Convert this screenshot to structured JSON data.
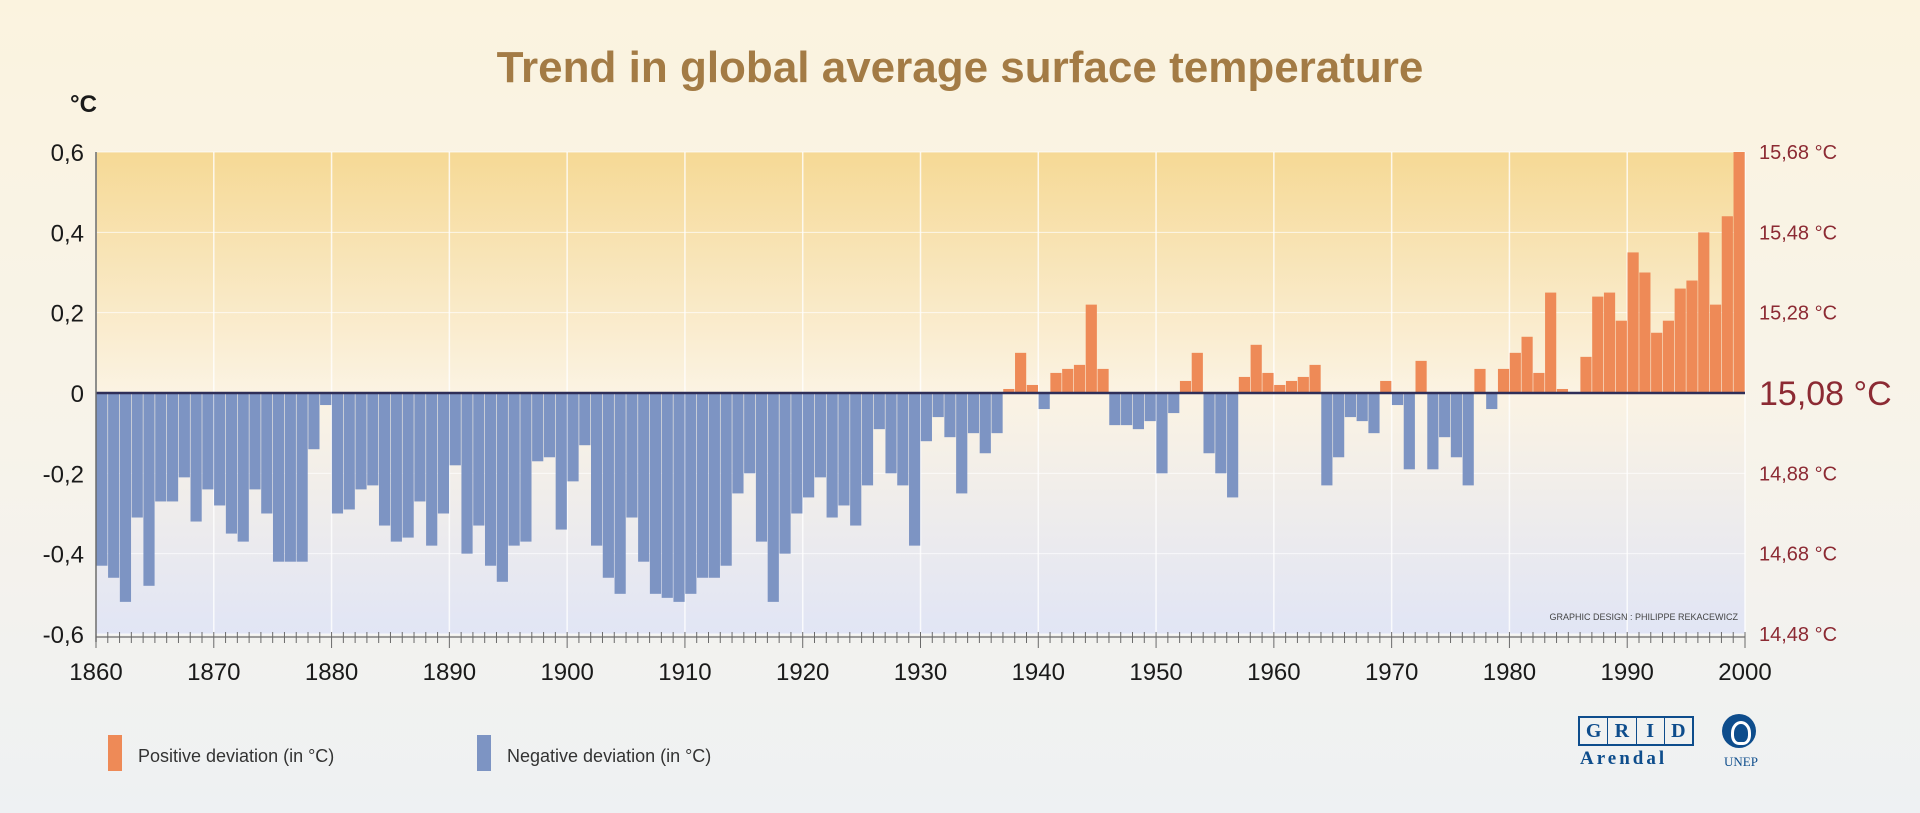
{
  "chart_data": {
    "type": "bar",
    "title": "Trend in global average surface temperature",
    "ylabel": "°C",
    "ylim": [
      -0.6,
      0.6
    ],
    "xlim": [
      1860,
      2000
    ],
    "yticks": [
      "0,6",
      "0,4",
      "0,2",
      "0",
      "-0,2",
      "-0,4",
      "-0,6"
    ],
    "right_ticks": [
      "15,68 °C",
      "15,48 °C",
      "15,28 °C",
      "15,08 °C",
      "14,88 °C",
      "14,68 °C",
      "14,48 °C"
    ],
    "xticks": [
      "1860",
      "1870",
      "1880",
      "1890",
      "1900",
      "1910",
      "1920",
      "1930",
      "1940",
      "1950",
      "1960",
      "1970",
      "1980",
      "1990",
      "2000"
    ],
    "years": [
      1860,
      1861,
      1862,
      1863,
      1864,
      1865,
      1866,
      1867,
      1868,
      1869,
      1870,
      1871,
      1872,
      1873,
      1874,
      1875,
      1876,
      1877,
      1878,
      1879,
      1880,
      1881,
      1882,
      1883,
      1884,
      1885,
      1886,
      1887,
      1888,
      1889,
      1890,
      1891,
      1892,
      1893,
      1894,
      1895,
      1896,
      1897,
      1898,
      1899,
      1900,
      1901,
      1902,
      1903,
      1904,
      1905,
      1906,
      1907,
      1908,
      1909,
      1910,
      1911,
      1912,
      1913,
      1914,
      1915,
      1916,
      1917,
      1918,
      1919,
      1920,
      1921,
      1922,
      1923,
      1924,
      1925,
      1926,
      1927,
      1928,
      1929,
      1930,
      1931,
      1932,
      1933,
      1934,
      1935,
      1936,
      1937,
      1938,
      1939,
      1940,
      1941,
      1942,
      1943,
      1944,
      1945,
      1946,
      1947,
      1948,
      1949,
      1950,
      1951,
      1952,
      1953,
      1954,
      1955,
      1956,
      1957,
      1958,
      1959,
      1960,
      1961,
      1962,
      1963,
      1964,
      1965,
      1966,
      1967,
      1968,
      1969,
      1970,
      1971,
      1972,
      1973,
      1974,
      1975,
      1976,
      1977,
      1978,
      1979,
      1980,
      1981,
      1982,
      1983,
      1984,
      1985,
      1986,
      1987,
      1988,
      1989,
      1990,
      1991,
      1992,
      1993,
      1994,
      1995,
      1996,
      1997,
      1998,
      1999
    ],
    "values": [
      -0.43,
      -0.46,
      -0.52,
      -0.31,
      -0.48,
      -0.27,
      -0.27,
      -0.21,
      -0.32,
      -0.24,
      -0.28,
      -0.35,
      -0.37,
      -0.24,
      -0.3,
      -0.42,
      -0.42,
      -0.42,
      -0.14,
      -0.03,
      -0.3,
      -0.29,
      -0.24,
      -0.23,
      -0.33,
      -0.37,
      -0.36,
      -0.27,
      -0.38,
      -0.3,
      -0.18,
      -0.4,
      -0.33,
      -0.43,
      -0.47,
      -0.38,
      -0.37,
      -0.17,
      -0.16,
      -0.34,
      -0.22,
      -0.13,
      -0.38,
      -0.46,
      -0.5,
      -0.31,
      -0.42,
      -0.5,
      -0.51,
      -0.52,
      -0.5,
      -0.46,
      -0.46,
      -0.43,
      -0.25,
      -0.2,
      -0.37,
      -0.52,
      -0.4,
      -0.3,
      -0.26,
      -0.21,
      -0.31,
      -0.28,
      -0.33,
      -0.23,
      -0.09,
      -0.2,
      -0.23,
      -0.38,
      -0.12,
      -0.06,
      -0.11,
      -0.25,
      -0.1,
      -0.15,
      -0.1,
      0.01,
      0.1,
      0.02,
      -0.04,
      0.05,
      0.06,
      0.07,
      0.22,
      0.06,
      -0.08,
      -0.08,
      -0.09,
      -0.07,
      -0.2,
      -0.05,
      0.03,
      0.1,
      -0.15,
      -0.2,
      -0.26,
      0.04,
      0.12,
      0.05,
      0.02,
      0.03,
      0.04,
      0.07,
      -0.23,
      -0.16,
      -0.06,
      -0.07,
      -0.1,
      0.03,
      -0.03,
      -0.19,
      0.08,
      -0.19,
      -0.11,
      -0.16,
      -0.23,
      0.06,
      -0.04,
      0.06,
      0.1,
      0.14,
      0.05,
      0.25,
      0.01,
      0.0,
      0.09,
      0.24,
      0.25,
      0.18,
      0.35,
      0.3,
      0.15,
      0.18,
      0.26,
      0.28,
      0.4,
      0.22,
      0.44,
      0.6
    ],
    "series": [
      {
        "name": "Positive deviation (in °C)",
        "color": "#ee8a57"
      },
      {
        "name": "Negative deviation (in °C)",
        "color": "#7d94c3"
      }
    ],
    "annotations": [
      "GRAPHIC DESIGN : PHILIPPE REKACEWICZ"
    ],
    "grid": true,
    "legend_position": "bottom-left"
  },
  "logos": {
    "grid_letters": [
      "G",
      "R",
      "I",
      "D"
    ],
    "arendal": "Arendal",
    "unep": "UNEP"
  },
  "colors": {
    "title": "#a37b45",
    "right_axis": "#8c2a33",
    "baseline": "#2f2f58",
    "plot_top": "#f6d995",
    "plot_mid": "#fbf3e3",
    "plot_bottom": "#e1e5f5"
  }
}
